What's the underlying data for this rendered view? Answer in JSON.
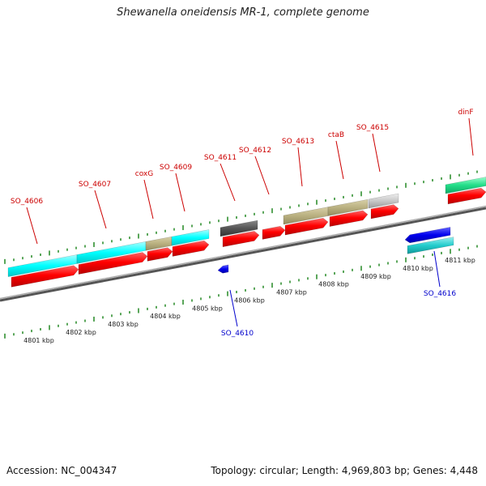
{
  "title": "Shewanella oneidensis MR-1, complete genome",
  "footer": {
    "accession": "Accession: NC_004347",
    "summary": "Topology: circular; Length: 4,969,803 bp; Genes: 4,448"
  },
  "colors": {
    "forward_label": "#cc0000",
    "reverse_label": "#0000cc",
    "tick": "#228822",
    "axis": "#777777",
    "cds": "#ff0000",
    "cyan": "#00ffff",
    "tan": "#b9b080",
    "darkgray": "#555555",
    "lightgray": "#c8c8c8",
    "blue": "#0000ee",
    "teal": "#22cccc",
    "green": "#22dd88"
  },
  "scale_labels": [
    {
      "kbp": 4801,
      "text": "4801 kbp"
    },
    {
      "kbp": 4802,
      "text": "4802 kbp"
    },
    {
      "kbp": 4803,
      "text": "4803 kbp"
    },
    {
      "kbp": 4804,
      "text": "4804 kbp"
    },
    {
      "kbp": 4805,
      "text": "4805 kbp"
    },
    {
      "kbp": 4806,
      "text": "4806 kbp"
    },
    {
      "kbp": 4807,
      "text": "4807 kbp"
    },
    {
      "kbp": 4808,
      "text": "4808 kbp"
    },
    {
      "kbp": 4809,
      "text": "4809 kbp"
    },
    {
      "kbp": 4810,
      "text": "4810 kbp"
    },
    {
      "kbp": 4811,
      "text": "4811 kbp"
    }
  ],
  "gene_labels": [
    {
      "name": "SO_4606",
      "strand": "forward"
    },
    {
      "name": "SO_4607",
      "strand": "forward"
    },
    {
      "name": "coxG",
      "strand": "forward"
    },
    {
      "name": "SO_4609",
      "strand": "forward"
    },
    {
      "name": "SO_4611",
      "strand": "forward"
    },
    {
      "name": "SO_4612",
      "strand": "forward"
    },
    {
      "name": "SO_4613",
      "strand": "forward"
    },
    {
      "name": "ctaB",
      "strand": "forward"
    },
    {
      "name": "SO_4615",
      "strand": "forward"
    },
    {
      "name": "dinF",
      "strand": "forward"
    },
    {
      "name": "SO_4610",
      "strand": "reverse"
    },
    {
      "name": "SO_4616",
      "strand": "reverse"
    }
  ]
}
